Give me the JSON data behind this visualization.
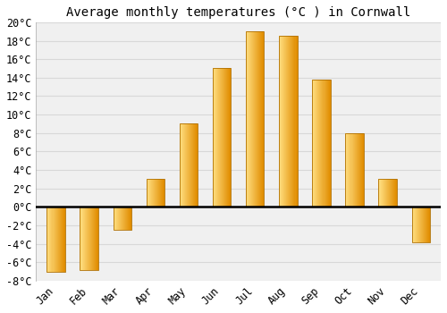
{
  "title": "Average monthly temperatures (°C ) in Cornwall",
  "months": [
    "Jan",
    "Feb",
    "Mar",
    "Apr",
    "May",
    "Jun",
    "Jul",
    "Aug",
    "Sep",
    "Oct",
    "Nov",
    "Dec"
  ],
  "values": [
    -7,
    -6.8,
    -2.5,
    3,
    9,
    15,
    19,
    18.5,
    13.8,
    8,
    3,
    -3.8
  ],
  "bar_color_main": "#FFA500",
  "bar_color_left": "#FFD080",
  "bar_color_right": "#E08000",
  "bar_edge_color": "#B07000",
  "background_color": "#ffffff",
  "plot_bg_color": "#f0f0f0",
  "grid_color": "#d8d8d8",
  "ylim": [
    -8,
    20
  ],
  "yticks": [
    -8,
    -6,
    -4,
    -2,
    0,
    2,
    4,
    6,
    8,
    10,
    12,
    14,
    16,
    18,
    20
  ],
  "title_fontsize": 10,
  "tick_fontsize": 8.5,
  "bar_width": 0.55
}
